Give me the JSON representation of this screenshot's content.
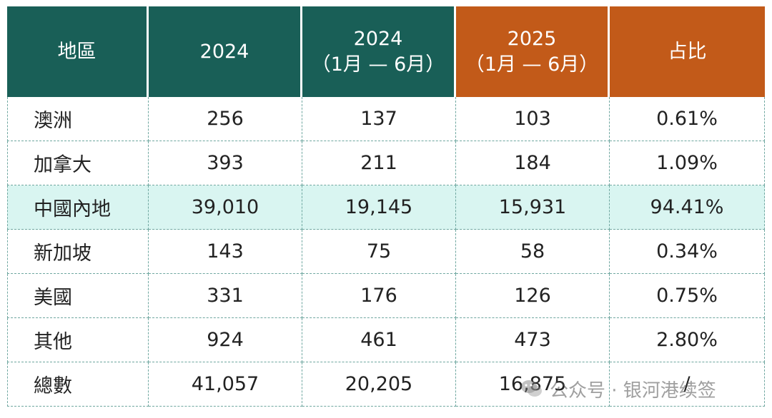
{
  "chart_data": {
    "type": "table",
    "columns": [
      {
        "line1": "地區",
        "line2": ""
      },
      {
        "line1": "2024",
        "line2": ""
      },
      {
        "line1": "2024",
        "line2": "（1月 — 6月）"
      },
      {
        "line1": "2025",
        "line2": "（1月 — 6月）"
      },
      {
        "line1": "占比",
        "line2": ""
      }
    ],
    "rows": [
      [
        "澳洲",
        "256",
        "137",
        "103",
        "0.61%"
      ],
      [
        "加拿大",
        "393",
        "211",
        "184",
        "1.09%"
      ],
      [
        "中國內地",
        "39,010",
        "19,145",
        "15,931",
        "94.41%"
      ],
      [
        "新加坡",
        "143",
        "75",
        "58",
        "0.34%"
      ],
      [
        "美國",
        "331",
        "176",
        "126",
        "0.75%"
      ],
      [
        "其他",
        "924",
        "461",
        "473",
        "2.80%"
      ],
      [
        "總數",
        "41,057",
        "20,205",
        "16,875",
        "/"
      ]
    ],
    "highlighted_row": 2,
    "colors": {
      "header_green": "#195f57",
      "header_orange": "#c25a19",
      "highlight_row": "#d9f5f1",
      "grid": "#6fa7a0"
    }
  },
  "watermark": {
    "text": "公众号 · 银河港续签",
    "icon": "wechat-logo-icon"
  }
}
